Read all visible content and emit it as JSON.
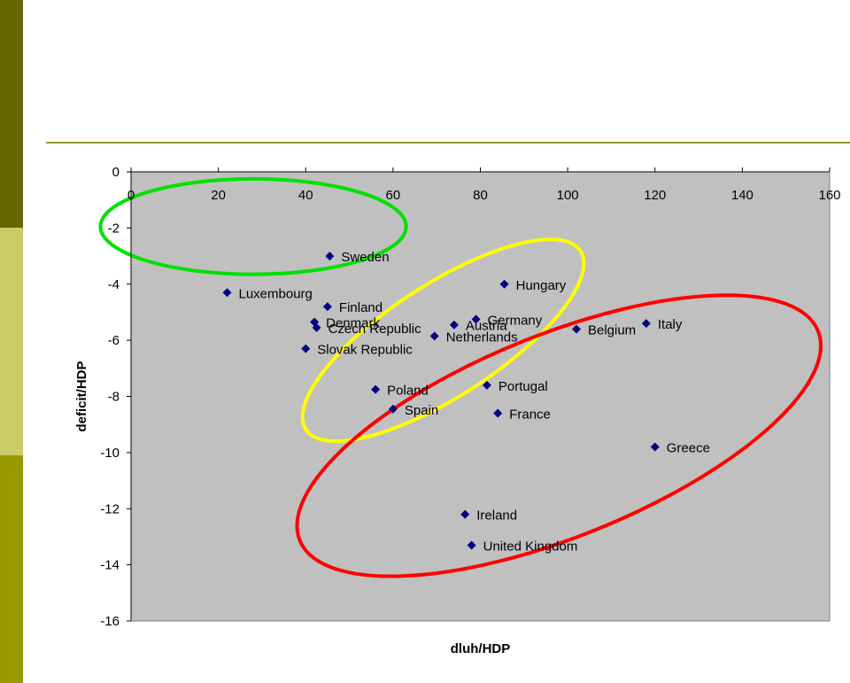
{
  "colors": {
    "bar_top": "#666600",
    "bar_mid": "#cccc66",
    "bar_bottom": "#999900",
    "rule": "#999933",
    "plot_bg": "#c0c0c0",
    "marker": "#000080",
    "ellipse_green": "#00e000",
    "ellipse_yellow": "#ffff00",
    "ellipse_red": "#ff0000"
  },
  "chart_data": {
    "type": "scatter",
    "xlabel": "dluh/HDP",
    "ylabel": "deficit/HDP",
    "xlim": [
      0,
      160
    ],
    "ylim": [
      -16,
      0
    ],
    "xticks": [
      0,
      20,
      40,
      60,
      80,
      100,
      120,
      140,
      160
    ],
    "yticks": [
      0,
      -2,
      -4,
      -6,
      -8,
      -10,
      -12,
      -14,
      -16
    ],
    "grid": false,
    "legend": "none",
    "marker": "diamond",
    "points": [
      {
        "label": "Sweden",
        "x": 45.5,
        "y": -3.0
      },
      {
        "label": "Luxembourg",
        "x": 22.0,
        "y": -4.3
      },
      {
        "label": "Hungary",
        "x": 85.5,
        "y": -4.0
      },
      {
        "label": "Finland",
        "x": 45.0,
        "y": -4.8
      },
      {
        "label": "Denmark",
        "x": 42.0,
        "y": -5.35
      },
      {
        "label": "Czech Republic",
        "x": 42.5,
        "y": -5.55
      },
      {
        "label": "Germany",
        "x": 79.0,
        "y": -5.25
      },
      {
        "label": "Austria",
        "x": 74.0,
        "y": -5.45
      },
      {
        "label": "Netherlands",
        "x": 69.5,
        "y": -5.85
      },
      {
        "label": "Belgium",
        "x": 102.0,
        "y": -5.6
      },
      {
        "label": "Italy",
        "x": 118.0,
        "y": -5.4
      },
      {
        "label": "Slovak Republic",
        "x": 40.0,
        "y": -6.3
      },
      {
        "label": "Poland",
        "x": 56.0,
        "y": -7.75
      },
      {
        "label": "Portugal",
        "x": 81.5,
        "y": -7.6
      },
      {
        "label": "Spain",
        "x": 60.0,
        "y": -8.45
      },
      {
        "label": "France",
        "x": 84.0,
        "y": -8.6
      },
      {
        "label": "Greece",
        "x": 120.0,
        "y": -9.8
      },
      {
        "label": "Ireland",
        "x": 76.5,
        "y": -12.2
      },
      {
        "label": "United Kingdom",
        "x": 78.0,
        "y": -13.3
      }
    ],
    "groups": [
      {
        "color": "green",
        "cx": 28,
        "cy": -1.95,
        "rx_units": 35,
        "ry_units": 1.7,
        "angle_deg": 0
      },
      {
        "color": "yellow",
        "cx": 71.5,
        "cy": -6.0,
        "rx_units": 37.5,
        "ry_units": 2.0,
        "angle_deg": -33
      },
      {
        "color": "red",
        "cx": 98,
        "cy": -9.4,
        "rx_units": 64,
        "ry_units": 3.6,
        "angle_deg": -22
      }
    ]
  }
}
